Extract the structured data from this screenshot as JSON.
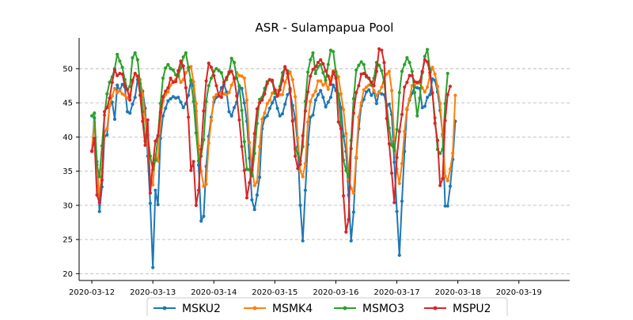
{
  "chart_data": {
    "type": "line",
    "title": "ASR - Sulampapua Pool",
    "xlabel": "",
    "ylabel": "",
    "x_ticks": [
      "2020-03-12",
      "2020-03-13",
      "2020-03-14",
      "2020-03-15",
      "2020-03-16",
      "2020-03-17",
      "2020-03-18",
      "2020-03-19"
    ],
    "y_ticks": [
      20,
      25,
      30,
      35,
      40,
      45,
      50
    ],
    "xlim": [
      "2020-03-11 19:00",
      "2020-03-19 20:00"
    ],
    "ylim": [
      19,
      54.5
    ],
    "x_sampling": "hourly from 2020-03-12 00:00 to 2020-03-19 15:00",
    "grid": "horizontal dashed",
    "legend_placement": "bottom-center",
    "series": [
      {
        "name": "MSKU2",
        "color": "#1f77b4",
        "values": [
          38.0,
          42.8,
          36.4,
          29.1,
          32.7,
          40.1,
          40.3,
          44.6,
          45.1,
          42.6,
          47.6,
          46.8,
          47.7,
          47.3,
          43.7,
          43.5,
          44.8,
          45.8,
          48.4,
          47.7,
          46.7,
          44.2,
          37.2,
          30.3,
          20.9,
          32.2,
          30.1,
          39.8,
          43.1,
          44.2,
          45.3,
          45.6,
          45.9,
          45.7,
          45.8,
          45.1,
          44.3,
          44.9,
          46.1,
          48.3,
          47.5,
          43.8,
          35.9,
          27.7,
          28.4,
          35.7,
          40.1,
          42.9,
          45.1,
          45.8,
          46.1,
          47.2,
          47.7,
          46.6,
          43.7,
          43.1,
          44.3,
          45.1,
          47.4,
          47.1,
          45.0,
          42.3,
          36.9,
          30.8,
          29.4,
          31.5,
          34.1,
          41.2,
          42.8,
          43.1,
          44.2,
          45.0,
          45.8,
          44.2,
          43.1,
          43.4,
          44.8,
          46.2,
          46.6,
          44.6,
          42.7,
          38.6,
          30.0,
          24.8,
          32.2,
          38.9,
          42.9,
          43.2,
          45.4,
          46.2,
          46.8,
          45.8,
          44.4,
          45.1,
          45.8,
          47.6,
          46.8,
          46.3,
          44.3,
          40.1,
          37.9,
          31.5,
          24.8,
          29.0,
          36.9,
          41.2,
          44.6,
          45.5,
          46.6,
          46.9,
          46.1,
          46.6,
          44.9,
          46.6,
          46.3,
          46.2,
          44.5,
          44.8,
          43.3,
          36.3,
          29.1,
          22.7,
          30.6,
          37.9,
          44.0,
          45.4,
          46.4,
          47.3,
          47.2,
          47.1,
          44.3,
          44.5,
          45.8,
          46.2,
          48.5,
          48.3,
          46.6,
          43.9,
          40.4,
          29.9,
          29.9,
          32.8,
          36.7,
          42.3
        ]
      },
      {
        "name": "MSMK4",
        "color": "#ff7f0e",
        "values": [
          38.0,
          42.1,
          36.0,
          31.1,
          35.2,
          40.8,
          41.2,
          44.6,
          46.0,
          47.1,
          46.5,
          46.8,
          46.3,
          46.1,
          45.7,
          46.2,
          48.0,
          49.3,
          48.8,
          48.4,
          46.1,
          42.7,
          38.8,
          34.1,
          33.0,
          37.4,
          36.5,
          42.3,
          45.3,
          46.2,
          46.6,
          47.6,
          48.1,
          48.4,
          49.0,
          48.0,
          48.4,
          49.4,
          49.8,
          50.3,
          48.1,
          44.9,
          38.7,
          35.0,
          32.8,
          33.1,
          39.1,
          42.4,
          45.8,
          46.2,
          46.2,
          46.5,
          46.3,
          46.2,
          46.5,
          47.6,
          48.4,
          49.4,
          49.0,
          48.9,
          48.6,
          45.4,
          39.2,
          35.6,
          32.9,
          33.4,
          38.6,
          42.6,
          43.5,
          44.9,
          45.4,
          46.4,
          46.9,
          46.8,
          46.2,
          46.2,
          48.0,
          48.8,
          49.5,
          48.4,
          45.9,
          39.9,
          35.0,
          34.2,
          36.1,
          42.2,
          45.2,
          46.1,
          46.7,
          48.2,
          48.2,
          47.6,
          47.9,
          47.0,
          48.6,
          49.7,
          49.6,
          48.8,
          46.3,
          44.0,
          40.5,
          33.9,
          32.5,
          31.8,
          37.1,
          42.9,
          45.0,
          46.9,
          47.3,
          47.6,
          47.6,
          46.8,
          46.1,
          46.5,
          47.3,
          48.6,
          49.2,
          49.6,
          46.8,
          39.7,
          35.3,
          33.2,
          36.1,
          40.8,
          44.2,
          45.6,
          47.5,
          47.6,
          47.9,
          47.9,
          47.2,
          46.6,
          47.3,
          49.0,
          50.2,
          49.2,
          47.4,
          44.9,
          40.2,
          34.3,
          33.6,
          35.3,
          37.6,
          46.1
        ]
      },
      {
        "name": "MSMO3",
        "color": "#2ca02c",
        "values": [
          43.1,
          43.5,
          35.9,
          34.2,
          38.7,
          43.2,
          46.3,
          48.0,
          48.8,
          50.0,
          52.1,
          51.1,
          50.2,
          48.4,
          46.9,
          47.4,
          51.6,
          52.3,
          51.3,
          47.8,
          43.7,
          39.4,
          40.3,
          37.2,
          35.2,
          36.6,
          40.1,
          44.9,
          48.6,
          50.1,
          50.6,
          50.0,
          49.8,
          49.1,
          48.9,
          50.1,
          51.7,
          52.3,
          50.2,
          48.2,
          45.2,
          40.6,
          36.5,
          37.2,
          39.6,
          45.2,
          47.5,
          48.6,
          49.6,
          50.0,
          49.7,
          49.4,
          48.0,
          48.4,
          49.3,
          51.5,
          50.9,
          48.6,
          47.5,
          43.9,
          39.3,
          35.3,
          35.2,
          34.3,
          37.6,
          42.0,
          45.5,
          45.8,
          47.1,
          48.1,
          48.4,
          48.1,
          46.4,
          46.0,
          47.4,
          49.4,
          50.1,
          49.7,
          47.1,
          42.3,
          38.3,
          37.6,
          36.5,
          38.6,
          45.2,
          49.5,
          51.3,
          52.3,
          49.3,
          50.3,
          50.6,
          49.4,
          48.3,
          50.6,
          52.7,
          52.5,
          49.5,
          46.0,
          41.6,
          36.6,
          35.1,
          34.1,
          39.5,
          45.6,
          49.8,
          50.5,
          51.0,
          50.6,
          48.8,
          48.6,
          47.6,
          48.6,
          50.9,
          50.5,
          49.7,
          48.0,
          44.7,
          41.3,
          38.8,
          38.0,
          41.1,
          46.5,
          49.6,
          50.6,
          51.6,
          50.9,
          49.6,
          46.5,
          43.1,
          45.7,
          49.4,
          51.8,
          52.8,
          49.9,
          46.4,
          42.8,
          38.2,
          37.6,
          38.2,
          44.9,
          49.3
        ]
      },
      {
        "name": "MSPU2",
        "color": "#d62728",
        "values": [
          37.9,
          39.8,
          31.5,
          30.4,
          33.7,
          43.7,
          44.3,
          45.7,
          48.0,
          49.8,
          49.0,
          49.3,
          49.2,
          47.5,
          46.9,
          45.4,
          48.3,
          49.3,
          48.9,
          46.1,
          42.3,
          38.8,
          42.5,
          31.8,
          36.1,
          39.4,
          40.2,
          43.6,
          45.9,
          46.7,
          47.2,
          48.6,
          48.0,
          48.1,
          49.7,
          51.1,
          50.4,
          47.2,
          42.9,
          35.1,
          36.4,
          30.0,
          32.2,
          38.2,
          43.8,
          48.2,
          50.8,
          50.2,
          49.0,
          47.5,
          46.0,
          45.8,
          48.0,
          48.7,
          49.5,
          49.6,
          48.6,
          46.0,
          42.5,
          38.6,
          35.1,
          31.1,
          33.3,
          35.2,
          40.5,
          44.1,
          45.0,
          45.4,
          46.3,
          47.8,
          48.4,
          48.3,
          46.9,
          46.0,
          46.9,
          48.3,
          50.3,
          49.3,
          46.9,
          42.4,
          37.2,
          35.4,
          36.0,
          40.2,
          43.8,
          46.6,
          48.9,
          49.9,
          50.3,
          50.9,
          51.3,
          50.7,
          49.7,
          48.9,
          47.7,
          49.5,
          48.6,
          42.2,
          41.2,
          31.4,
          26.1,
          27.9,
          38.3,
          43.5,
          46.5,
          47.5,
          49.2,
          49.3,
          49.0,
          48.6,
          48.0,
          47.5,
          49.6,
          52.9,
          52.7,
          50.9,
          42.7,
          39.0,
          34.7,
          30.4,
          37.0,
          40.8,
          43.3,
          47.3,
          48.0,
          49.0,
          49.0,
          48.1,
          48.0,
          48.1,
          49.6,
          51.3,
          51.0,
          49.4,
          46.5,
          42.0,
          39.5,
          32.9,
          33.9,
          42.4,
          46.2,
          47.4
        ]
      }
    ]
  },
  "legend": {
    "items": [
      {
        "name": "MSKU2",
        "color": "#1f77b4"
      },
      {
        "name": "MSMK4",
        "color": "#ff7f0e"
      },
      {
        "name": "MSMO3",
        "color": "#2ca02c"
      },
      {
        "name": "MSPU2",
        "color": "#d62728"
      }
    ]
  }
}
